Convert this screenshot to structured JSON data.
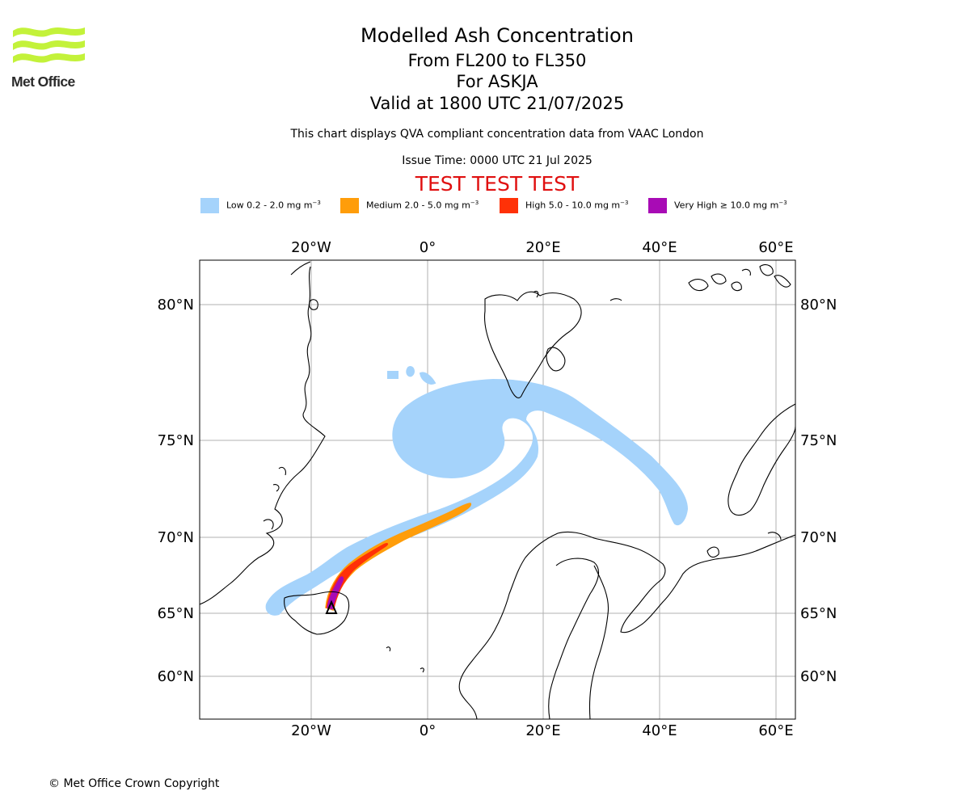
{
  "logo": {
    "text": "Met Office"
  },
  "header": {
    "title": "Modelled Ash Concentration",
    "levels": "From FL200 to FL350",
    "volcano": "For ASKJA",
    "valid": "Valid at 1800 UTC 21/07/2025",
    "disclaimer": "This chart displays QVA compliant concentration data from VAAC London",
    "issue_time": "Issue Time: 0000 UTC 21 Jul 2025",
    "test_banner": "TEST TEST TEST"
  },
  "legend": [
    {
      "label": "Low 0.2 - 2.0 mg m",
      "exp": "−3",
      "color": "#a5d3fb"
    },
    {
      "label": "Medium 2.0 - 5.0 mg m",
      "exp": "−3",
      "color": "#ff9d0a"
    },
    {
      "label": "High 5.0 - 10.0 mg m",
      "exp": "−3",
      "color": "#ff3107"
    },
    {
      "label": "Very High ≥ 10.0 mg m",
      "exp": "−3",
      "color": "#a80bb5"
    }
  ],
  "map": {
    "lon_ticks": [
      "20°W",
      "0°",
      "20°E",
      "40°E",
      "60°E"
    ],
    "lat_ticks": [
      "80°N",
      "75°N",
      "70°N",
      "65°N",
      "60°N"
    ],
    "volcano_marker": "triangle"
  },
  "footer": {
    "copyright": "© Met Office Crown Copyright"
  }
}
